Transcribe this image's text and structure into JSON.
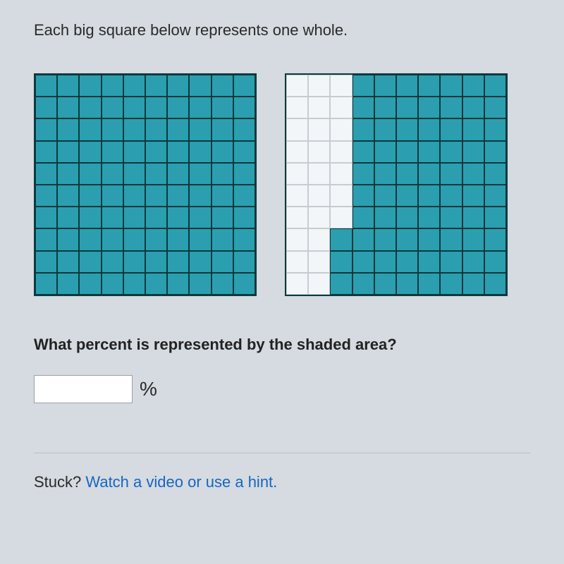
{
  "intro_text": "Each big square below represents one whole.",
  "question_text": "What percent is represented by the shaded area?",
  "answer_value": "",
  "percent_symbol": "%",
  "stuck_label": "Stuck?",
  "hint_link_text": "Watch a video or use a hint.",
  "grids": {
    "rows": 10,
    "cols": 10,
    "shaded_color": "#2b9fb0",
    "shaded_border": "#0b3a3f",
    "unshaded_color": "#f3f6f8",
    "unshaded_border": "#c6ccd1",
    "grid1_shaded_count": 100,
    "grid2": {
      "comment": "Columns 1-3 unshaded except bottom 3 rows of col 3; columns 4-10 fully shaded. 73 shaded total.",
      "shaded_cells_rule": "col>=4 OR (col==3 AND row>=8)"
    }
  }
}
